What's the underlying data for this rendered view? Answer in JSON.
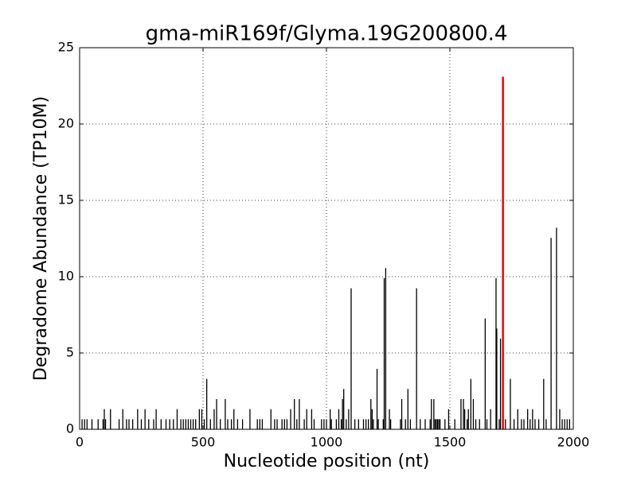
{
  "chart_data": {
    "type": "stem",
    "title": "gma-miR169f/Glyma.19G200800.4",
    "xlabel": "Nucleotide position (nt)",
    "ylabel": "Degradome Abundance (TP10M)",
    "x": [
      10,
      20,
      30,
      50,
      75,
      95,
      100,
      105,
      125,
      160,
      175,
      190,
      200,
      215,
      235,
      250,
      265,
      280,
      300,
      310,
      330,
      350,
      365,
      380,
      395,
      410,
      420,
      430,
      440,
      450,
      460,
      470,
      485,
      495,
      505,
      515,
      530,
      545,
      555,
      570,
      590,
      600,
      615,
      625,
      640,
      660,
      690,
      720,
      730,
      740,
      775,
      790,
      800,
      820,
      830,
      840,
      855,
      870,
      880,
      890,
      910,
      920,
      940,
      950,
      980,
      990,
      1000,
      1015,
      1020,
      1040,
      1050,
      1060,
      1065,
      1070,
      1080,
      1090,
      1100,
      1115,
      1130,
      1150,
      1160,
      1170,
      1180,
      1185,
      1190,
      1205,
      1210,
      1230,
      1234,
      1240,
      1255,
      1260,
      1300,
      1305,
      1320,
      1330,
      1340,
      1365,
      1380,
      1400,
      1420,
      1425,
      1435,
      1440,
      1445,
      1450,
      1455,
      1460,
      1480,
      1495,
      1520,
      1545,
      1555,
      1560,
      1570,
      1575,
      1585,
      1595,
      1605,
      1620,
      1643,
      1650,
      1665,
      1687,
      1690,
      1700,
      1705,
      1725,
      1745,
      1760,
      1775,
      1790,
      1800,
      1815,
      1825,
      1835,
      1845,
      1860,
      1880,
      1890,
      1910,
      1932,
      1945,
      1955,
      1965,
      1975,
      1985
    ],
    "values": [
      0.66,
      0.66,
      0.66,
      0.66,
      0.66,
      0.66,
      1.32,
      0.66,
      1.32,
      0.66,
      1.32,
      0.66,
      0.66,
      0.66,
      1.32,
      0.66,
      1.32,
      0.66,
      0.66,
      1.32,
      0.66,
      0.66,
      0.66,
      0.66,
      1.32,
      0.66,
      0.66,
      0.66,
      0.66,
      0.66,
      0.66,
      0.66,
      1.32,
      1.32,
      0.66,
      3.3,
      0.66,
      1.32,
      1.98,
      0.66,
      1.98,
      0.66,
      0.66,
      1.32,
      0.66,
      0.66,
      1.32,
      0.66,
      0.66,
      0.66,
      1.32,
      0.66,
      0.66,
      0.66,
      0.66,
      0.66,
      1.32,
      1.98,
      0.66,
      1.98,
      0.66,
      1.32,
      1.32,
      0.66,
      0.66,
      0.66,
      0.66,
      1.32,
      0.66,
      0.66,
      1.32,
      0.66,
      1.98,
      2.64,
      0.66,
      1.32,
      9.24,
      0.66,
      0.66,
      0.66,
      0.66,
      0.66,
      1.98,
      1.32,
      0.66,
      3.96,
      0.66,
      0.66,
      9.9,
      10.56,
      1.32,
      0.66,
      0.66,
      1.98,
      0.66,
      2.64,
      0.66,
      9.24,
      0.66,
      0.66,
      0.66,
      1.98,
      1.98,
      0.66,
      0.66,
      0.66,
      0.66,
      0.66,
      0.66,
      1.32,
      0.66,
      1.98,
      1.98,
      1.32,
      0.66,
      1.32,
      3.3,
      1.98,
      0.66,
      0.66,
      7.26,
      0.66,
      1.32,
      9.9,
      6.6,
      0.66,
      5.94,
      0.66,
      3.3,
      0.66,
      1.32,
      0.66,
      0.66,
      1.32,
      0.66,
      1.32,
      0.66,
      0.66,
      3.3,
      0.66,
      12.54,
      13.2,
      1.32,
      0.66,
      0.66,
      0.66,
      0.66
    ],
    "color": "#000000",
    "highlight": {
      "x": 1715,
      "value": 23.1,
      "color": "#ff0000"
    },
    "xlim": [
      0,
      2000
    ],
    "xticks": [
      0,
      500,
      1000,
      1500,
      2000
    ],
    "ylim": [
      0,
      25
    ],
    "yticks": [
      0,
      5,
      10,
      15,
      20,
      25
    ],
    "grid": true
  }
}
